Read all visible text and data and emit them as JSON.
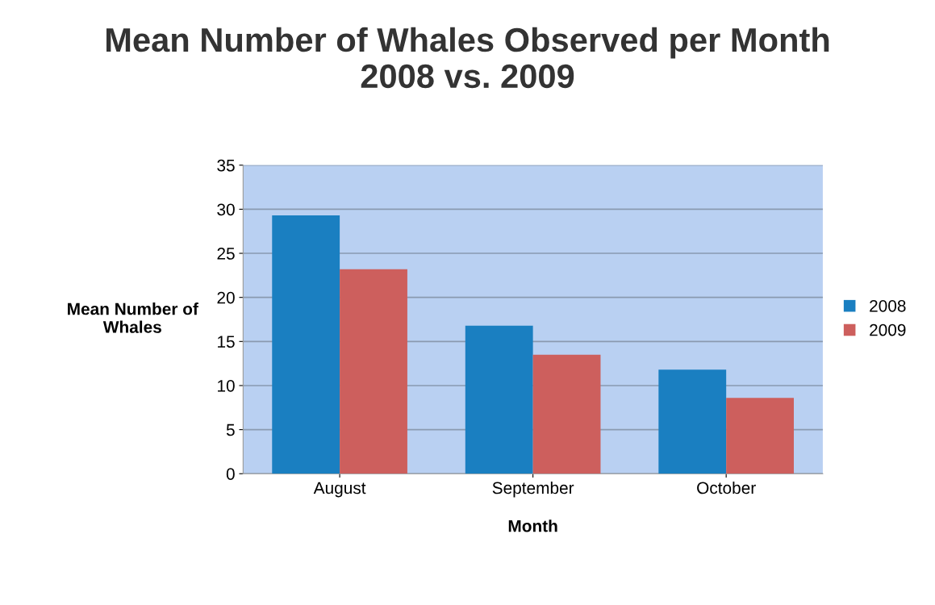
{
  "chart_data": {
    "type": "bar",
    "title": "Mean Number of Whales Observed per Month\n2008 vs. 2009",
    "xlabel": "Month",
    "ylabel": "Mean Number of\nWhales",
    "categories": [
      "August",
      "September",
      "October"
    ],
    "series": [
      {
        "name": "2008",
        "color": "#1a7fc1",
        "values": [
          29.3,
          16.8,
          11.8
        ]
      },
      {
        "name": "2009",
        "color": "#cd5f5d",
        "values": [
          23.2,
          13.5,
          8.6
        ]
      }
    ],
    "ylim": [
      0,
      35
    ],
    "yticks": [
      0,
      5,
      10,
      15,
      20,
      25,
      30,
      35
    ],
    "grid": "y",
    "legend": "right"
  }
}
